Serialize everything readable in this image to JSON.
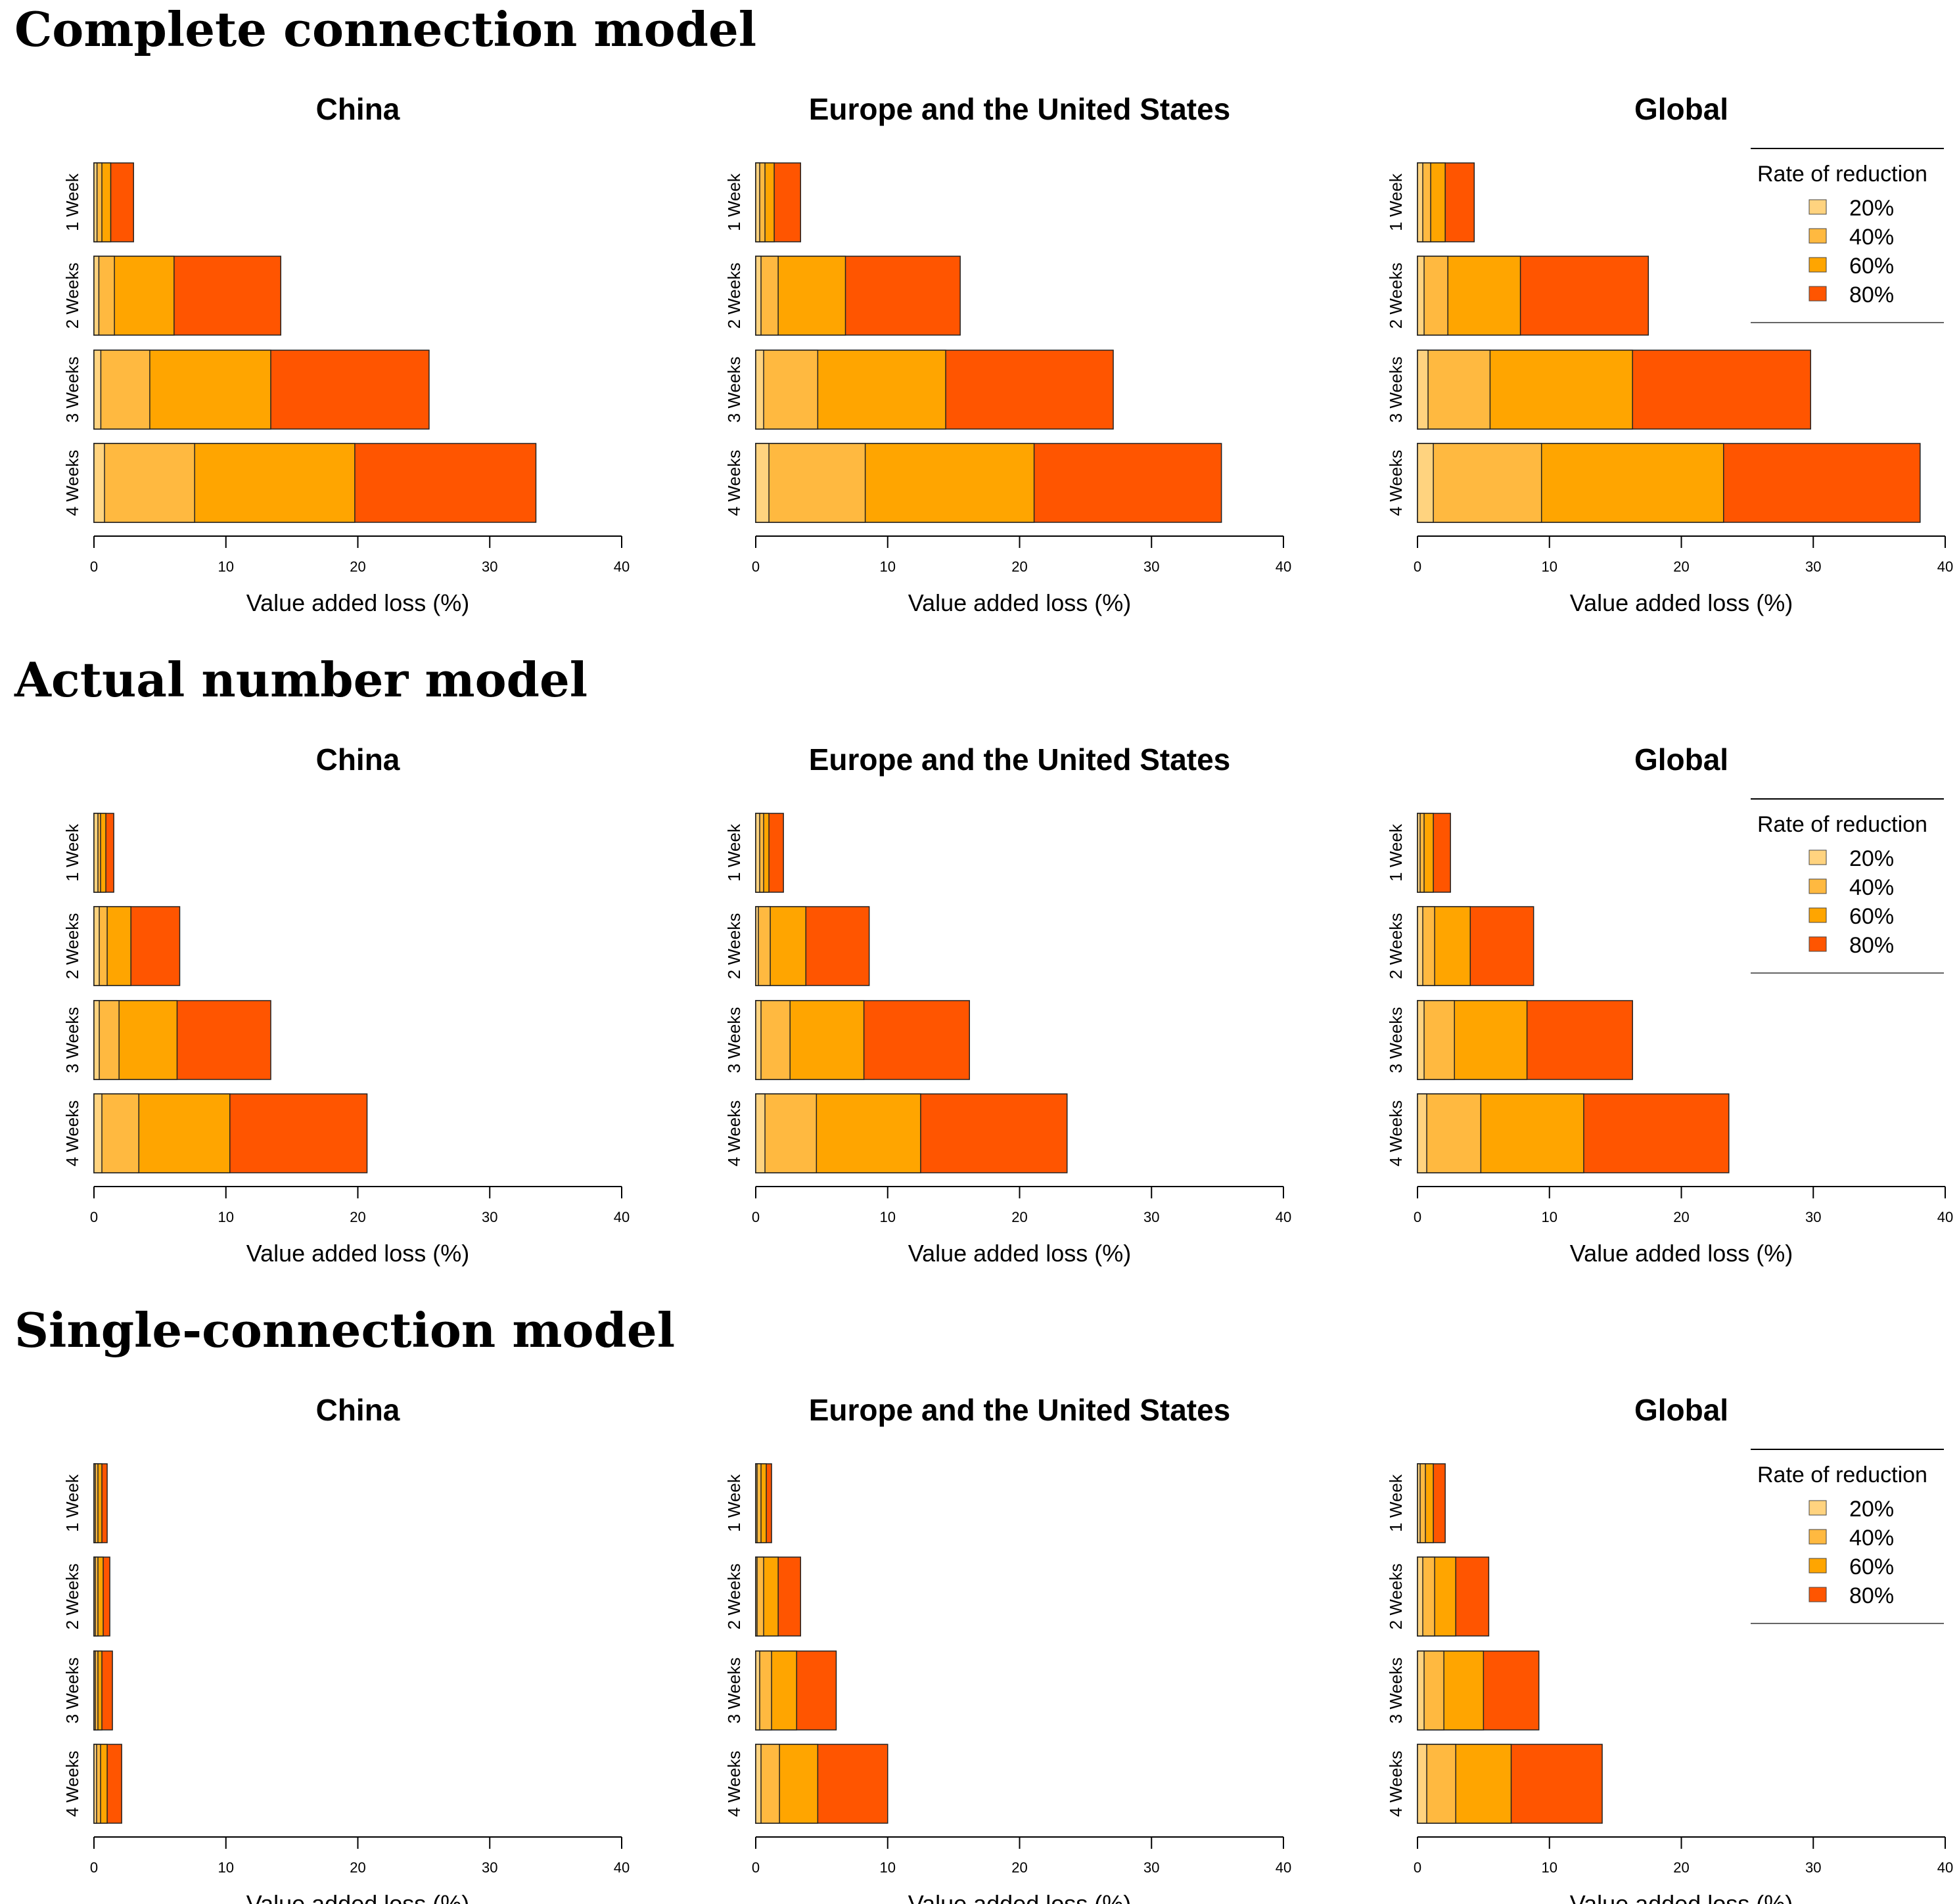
{
  "legend": {
    "title": "Rate of reduction",
    "labels": [
      "20%",
      "40%",
      "60%",
      "80%"
    ]
  },
  "colors": {
    "20%": "#FFD37F",
    "40%": "#FFB940",
    "60%": "#FFA500",
    "80%": "#FF5500"
  },
  "chart_data": [
    {
      "type": "bar",
      "model": "Complete connection model",
      "title": "China",
      "xlabel": "Value added loss (%)",
      "xlim": [
        0,
        40
      ],
      "xticks": [
        "0",
        "10",
        "20",
        "30",
        "40"
      ],
      "categories": [
        "1 Week",
        "2 Weeks",
        "3 Weeks",
        "4 Weeks"
      ],
      "series": [
        {
          "name": "20%",
          "values": [
            0.23,
            0.37,
            0.52,
            0.8
          ]
        },
        {
          "name": "40%",
          "values": [
            0.6,
            1.55,
            4.23,
            7.63
          ]
        },
        {
          "name": "60%",
          "values": [
            1.27,
            6.07,
            13.4,
            19.77
          ]
        },
        {
          "name": "80%",
          "values": [
            3.0,
            14.16,
            25.4,
            33.5
          ]
        }
      ],
      "legend": false
    },
    {
      "type": "bar",
      "model": "Complete connection model",
      "title": "Europe and the United States",
      "xlabel": "Value added loss (%)",
      "xlim": [
        0,
        40
      ],
      "xticks": [
        "0",
        "10",
        "20",
        "30",
        "40"
      ],
      "categories": [
        "1 Week",
        "2 Weeks",
        "3 Weeks",
        "4 Weeks"
      ],
      "series": [
        {
          "name": "20%",
          "values": [
            0.3,
            0.4,
            0.6,
            1.0
          ]
        },
        {
          "name": "40%",
          "values": [
            0.7,
            1.7,
            4.7,
            8.3
          ]
        },
        {
          "name": "60%",
          "values": [
            1.4,
            6.8,
            14.4,
            21.1
          ]
        },
        {
          "name": "80%",
          "values": [
            3.4,
            15.5,
            27.1,
            35.3
          ]
        }
      ],
      "legend": false
    },
    {
      "type": "bar",
      "model": "Complete connection model",
      "title": "Global",
      "xlabel": "Value added loss (%)",
      "xlim": [
        0,
        40
      ],
      "xticks": [
        "0",
        "10",
        "20",
        "30",
        "40"
      ],
      "categories": [
        "1 Week",
        "2 Weeks",
        "3 Weeks",
        "4 Weeks"
      ],
      "series": [
        {
          "name": "20%",
          "values": [
            0.4,
            0.5,
            0.8,
            1.2
          ]
        },
        {
          "name": "40%",
          "values": [
            1.0,
            2.3,
            5.5,
            9.4
          ]
        },
        {
          "name": "60%",
          "values": [
            2.1,
            7.8,
            16.3,
            23.2
          ]
        },
        {
          "name": "80%",
          "values": [
            4.3,
            17.5,
            29.8,
            38.1
          ]
        }
      ],
      "legend": "top-right"
    },
    {
      "type": "bar",
      "model": "Actual number model",
      "title": "China",
      "xlabel": "Value added loss (%)",
      "xlim": [
        0,
        40
      ],
      "xticks": [
        "0",
        "10",
        "20",
        "30",
        "40"
      ],
      "categories": [
        "1 Week",
        "2 Weeks",
        "3 Weeks",
        "4 Weeks"
      ],
      "series": [
        {
          "name": "20%",
          "values": [
            0.3,
            0.4,
            0.4,
            0.6
          ]
        },
        {
          "name": "40%",
          "values": [
            0.5,
            1.0,
            1.9,
            3.4
          ]
        },
        {
          "name": "60%",
          "values": [
            0.9,
            2.8,
            6.3,
            10.3
          ]
        },
        {
          "name": "80%",
          "values": [
            1.5,
            6.5,
            13.4,
            20.7
          ]
        }
      ],
      "legend": false
    },
    {
      "type": "bar",
      "model": "Actual number model",
      "title": "Europe and the United States",
      "xlabel": "Value added loss (%)",
      "xlim": [
        0,
        40
      ],
      "xticks": [
        "0",
        "10",
        "20",
        "30",
        "40"
      ],
      "categories": [
        "1 Week",
        "2 Weeks",
        "3 Weeks",
        "4 Weeks"
      ],
      "series": [
        {
          "name": "20%",
          "values": [
            0.3,
            0.2,
            0.4,
            0.7
          ]
        },
        {
          "name": "40%",
          "values": [
            0.6,
            1.1,
            2.6,
            4.6
          ]
        },
        {
          "name": "60%",
          "values": [
            1.0,
            3.8,
            8.2,
            12.5
          ]
        },
        {
          "name": "80%",
          "values": [
            2.1,
            8.6,
            16.2,
            23.6
          ]
        }
      ],
      "legend": false
    },
    {
      "type": "bar",
      "model": "Actual number model",
      "title": "Global",
      "xlabel": "Value added loss (%)",
      "xlim": [
        0,
        40
      ],
      "xticks": [
        "0",
        "10",
        "20",
        "30",
        "40"
      ],
      "categories": [
        "1 Week",
        "2 Weeks",
        "3 Weeks",
        "4 Weeks"
      ],
      "series": [
        {
          "name": "20%",
          "values": [
            0.2,
            0.4,
            0.5,
            0.7
          ]
        },
        {
          "name": "40%",
          "values": [
            0.5,
            1.3,
            2.8,
            4.8
          ]
        },
        {
          "name": "60%",
          "values": [
            1.2,
            4.0,
            8.3,
            12.6
          ]
        },
        {
          "name": "80%",
          "values": [
            2.5,
            8.8,
            16.3,
            23.6
          ]
        }
      ],
      "legend": "top-right"
    },
    {
      "type": "bar",
      "model": "Single-connection model",
      "title": "China",
      "xlabel": "Value added loss (%)",
      "xlim": [
        0,
        40
      ],
      "xticks": [
        "0",
        "10",
        "20",
        "30",
        "40"
      ],
      "categories": [
        "1 Week",
        "2 Weeks",
        "3 Weeks",
        "4 Weeks"
      ],
      "series": [
        {
          "name": "20%",
          "values": [
            0.1,
            0.1,
            0.1,
            0.2
          ]
        },
        {
          "name": "40%",
          "values": [
            0.3,
            0.3,
            0.3,
            0.5
          ]
        },
        {
          "name": "60%",
          "values": [
            0.6,
            0.7,
            0.6,
            1.0
          ]
        },
        {
          "name": "80%",
          "values": [
            1.0,
            1.2,
            1.4,
            2.1
          ]
        }
      ],
      "legend": false
    },
    {
      "type": "bar",
      "model": "Single-connection model",
      "title": "Europe and the United States",
      "xlabel": "Value added loss (%)",
      "xlim": [
        0,
        40
      ],
      "xticks": [
        "0",
        "10",
        "20",
        "30",
        "40"
      ],
      "categories": [
        "1 Week",
        "2 Weeks",
        "3 Weeks",
        "4 Weeks"
      ],
      "series": [
        {
          "name": "20%",
          "values": [
            0.1,
            0.1,
            0.3,
            0.4
          ]
        },
        {
          "name": "40%",
          "values": [
            0.4,
            0.6,
            1.2,
            1.8
          ]
        },
        {
          "name": "60%",
          "values": [
            0.8,
            1.7,
            3.1,
            4.7
          ]
        },
        {
          "name": "80%",
          "values": [
            1.2,
            3.4,
            6.1,
            10.0
          ]
        }
      ],
      "legend": false
    },
    {
      "type": "bar",
      "model": "Single-connection model",
      "title": "Global",
      "xlabel": "Value added loss (%)",
      "xlim": [
        0,
        40
      ],
      "xticks": [
        "0",
        "10",
        "20",
        "30",
        "40"
      ],
      "categories": [
        "1 Week",
        "2 Weeks",
        "3 Weeks",
        "4 Weeks"
      ],
      "series": [
        {
          "name": "20%",
          "values": [
            0.2,
            0.4,
            0.5,
            0.7
          ]
        },
        {
          "name": "40%",
          "values": [
            0.6,
            1.3,
            2.0,
            2.9
          ]
        },
        {
          "name": "60%",
          "values": [
            1.2,
            2.9,
            5.0,
            7.1
          ]
        },
        {
          "name": "80%",
          "values": [
            2.1,
            5.4,
            9.2,
            14.0
          ]
        }
      ],
      "legend": "top-right"
    }
  ],
  "sections": [
    "Complete connection model",
    "Actual number model",
    "Single-connection model"
  ]
}
